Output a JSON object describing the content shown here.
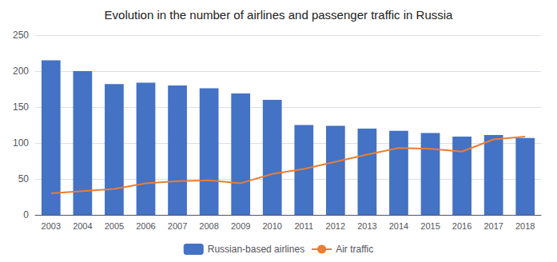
{
  "chart_data": {
    "type": "bar",
    "title": "Evolution in the number of airlines and passenger traffic in Russia",
    "categories": [
      "2003",
      "2004",
      "2005",
      "2006",
      "2007",
      "2008",
      "2009",
      "2010",
      "2011",
      "2012",
      "2013",
      "2014",
      "2015",
      "2016",
      "2017",
      "2018"
    ],
    "series": [
      {
        "name": "Russian-based airlines",
        "type": "bar",
        "color": "#4472C4",
        "values": [
          215,
          200,
          182,
          184,
          180,
          176,
          169,
          160,
          125,
          124,
          120,
          117,
          114,
          109,
          111,
          107
        ]
      },
      {
        "name": "Air traffic",
        "type": "line",
        "color": "#ED7D31",
        "values": [
          30,
          33,
          36,
          44,
          47,
          48,
          44,
          57,
          64,
          74,
          84,
          93,
          92,
          88,
          105,
          109
        ]
      }
    ],
    "ylim": [
      0,
      250
    ],
    "yticks": [
      0,
      50,
      100,
      150,
      200,
      250
    ],
    "grid": true,
    "legend": "bottom"
  }
}
